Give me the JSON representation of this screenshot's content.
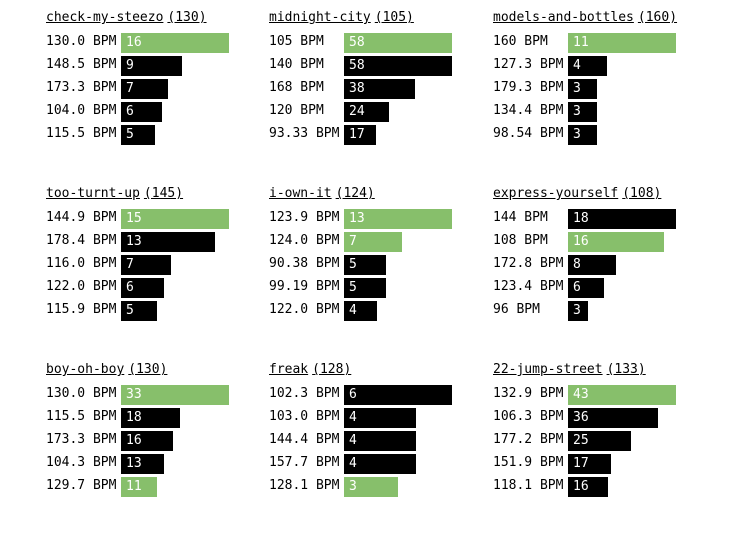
{
  "colors": {
    "highlight": "#87bf6b",
    "default": "#000000",
    "bar_text": "#ffffff"
  },
  "bpm_suffix": " BPM",
  "chart_data": [
    {
      "type": "bar",
      "title": "check-my-steezo",
      "title_value": "(130)",
      "categories": [
        "130.0",
        "148.5",
        "173.3",
        "104.0",
        "115.5"
      ],
      "values": [
        16,
        9,
        7,
        6,
        5
      ],
      "highlighted": [
        true,
        false,
        false,
        false,
        false
      ]
    },
    {
      "type": "bar",
      "title": "midnight-city",
      "title_value": "(105)",
      "categories": [
        "105",
        "140",
        "168",
        "120",
        "93.33"
      ],
      "values": [
        58,
        58,
        38,
        24,
        17
      ],
      "highlighted": [
        true,
        false,
        false,
        false,
        false
      ]
    },
    {
      "type": "bar",
      "title": "models-and-bottles",
      "title_value": "(160)",
      "categories": [
        "160",
        "127.3",
        "179.3",
        "134.4",
        "98.54"
      ],
      "values": [
        11,
        4,
        3,
        3,
        3
      ],
      "highlighted": [
        true,
        false,
        false,
        false,
        false
      ]
    },
    {
      "type": "bar",
      "title": "too-turnt-up",
      "title_value": "(145)",
      "categories": [
        "144.9",
        "178.4",
        "116.0",
        "122.0",
        "115.9"
      ],
      "values": [
        15,
        13,
        7,
        6,
        5
      ],
      "highlighted": [
        true,
        false,
        false,
        false,
        false
      ]
    },
    {
      "type": "bar",
      "title": "i-own-it",
      "title_value": "(124)",
      "categories": [
        "123.9",
        "124.0",
        "90.38",
        "99.19",
        "122.0"
      ],
      "values": [
        13,
        7,
        5,
        5,
        4
      ],
      "highlighted": [
        true,
        true,
        false,
        false,
        false
      ]
    },
    {
      "type": "bar",
      "title": "express-yourself",
      "title_value": "(108)",
      "categories": [
        "144",
        "108",
        "172.8",
        "123.4",
        "96"
      ],
      "values": [
        18,
        16,
        8,
        6,
        3
      ],
      "highlighted": [
        false,
        true,
        false,
        false,
        false
      ]
    },
    {
      "type": "bar",
      "title": "boy-oh-boy",
      "title_value": "(130)",
      "categories": [
        "130.0",
        "115.5",
        "173.3",
        "104.3",
        "129.7"
      ],
      "values": [
        33,
        18,
        16,
        13,
        11
      ],
      "highlighted": [
        true,
        false,
        false,
        false,
        true
      ]
    },
    {
      "type": "bar",
      "title": "freak",
      "title_value": "(128)",
      "categories": [
        "102.3",
        "103.0",
        "144.4",
        "157.7",
        "128.1"
      ],
      "values": [
        6,
        4,
        4,
        4,
        3
      ],
      "highlighted": [
        false,
        false,
        false,
        false,
        true
      ]
    },
    {
      "type": "bar",
      "title": "22-jump-street",
      "title_value": "(133)",
      "categories": [
        "132.9",
        "106.3",
        "177.2",
        "151.9",
        "118.1"
      ],
      "values": [
        43,
        36,
        25,
        17,
        16
      ],
      "highlighted": [
        true,
        false,
        false,
        false,
        false
      ]
    }
  ]
}
